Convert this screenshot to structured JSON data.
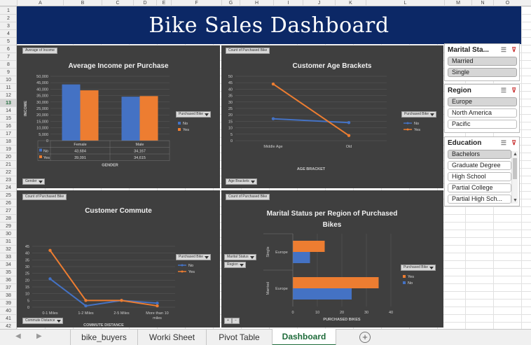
{
  "column_headers": [
    "A",
    "B",
    "C",
    "D",
    "E",
    "F",
    "G",
    "H",
    "I",
    "J",
    "K",
    "L",
    "M",
    "N",
    "O"
  ],
  "row_numbers": [
    "1",
    "2",
    "3",
    "4",
    "5",
    "6",
    "7",
    "8",
    "9",
    "10",
    "11",
    "12",
    "13",
    "14",
    "15",
    "16",
    "17",
    "18",
    "19",
    "20",
    "21",
    "22",
    "23",
    "24",
    "25",
    "26",
    "27",
    "28",
    "29",
    "30",
    "31",
    "32",
    "33",
    "34",
    "35",
    "36",
    "37",
    "38",
    "39",
    "40",
    "41",
    "42"
  ],
  "selected_row": "13",
  "title": "Bike Sales Dashboard",
  "colors": {
    "no": "#4472c4",
    "yes": "#ed7d31",
    "banner": "#0c2866",
    "panel": "#3f3f3f"
  },
  "panels": {
    "income": {
      "title": "Average Income per Purchase",
      "field_button": "Average of Income",
      "axis_button": "Gender",
      "legend_button": "Purchased Bike",
      "legend": [
        "No",
        "Yes"
      ],
      "table": {
        "headers": [
          "Female",
          "Male"
        ],
        "rows": [
          {
            "label": "No",
            "values": [
              "43,684",
              "34,167"
            ]
          },
          {
            "label": "Yes",
            "values": [
              "39,091",
              "34,615"
            ]
          }
        ]
      }
    },
    "age": {
      "title": "Customer Age Brackets",
      "field_button": "Count of Purchased Bike",
      "axis_button": "Age Brackets",
      "legend_button": "Purchased Bike",
      "legend": [
        "No",
        "Yes"
      ]
    },
    "commute": {
      "title": "Customer Commute",
      "field_button": "Count of Purchased Bike",
      "axis_button": "Commute Distance",
      "legend_button": "Purchased Bike",
      "legend": [
        "No",
        "Yes"
      ]
    },
    "marital": {
      "title_lines": [
        "Marital Status per Region of Purchased",
        "Bikes"
      ],
      "field_button": "Count of Purchased Bike",
      "axis_buttons": [
        "Marital Status",
        "Region"
      ],
      "legend_button": "Purchased Bike",
      "legend": [
        "Yes",
        "No"
      ],
      "collapse_buttons": [
        "+",
        "−"
      ]
    }
  },
  "chart_data": [
    {
      "type": "bar",
      "title": "Average Income per Purchase",
      "categories": [
        "Female",
        "Male"
      ],
      "xlabel": "GENDER",
      "ylabel": "INCOME",
      "ylim": [
        0,
        50000
      ],
      "yticks": [
        "0",
        "5,000",
        "10,000",
        "15,000",
        "20,000",
        "25,000",
        "30,000",
        "35,000",
        "40,000",
        "45,000",
        "50,000"
      ],
      "series": [
        {
          "name": "No",
          "values": [
            43684,
            34167
          ]
        },
        {
          "name": "Yes",
          "values": [
            39091,
            34615
          ]
        }
      ],
      "grid": true,
      "legend": "right"
    },
    {
      "type": "line",
      "title": "Customer Age Brackets",
      "categories": [
        "Middle Age",
        "Old"
      ],
      "xlabel": "AGE BRACKET",
      "ylim": [
        0,
        50
      ],
      "yticks": [
        "0",
        "5",
        "10",
        "15",
        "20",
        "25",
        "30",
        "35",
        "40",
        "45",
        "50"
      ],
      "series": [
        {
          "name": "No",
          "values": [
            17,
            14
          ]
        },
        {
          "name": "Yes",
          "values": [
            44,
            4
          ]
        }
      ],
      "grid": true,
      "legend": "right"
    },
    {
      "type": "line",
      "title": "Customer Commute",
      "categories": [
        "0-1 Miles",
        "1-2 Miles",
        "2-5 Miles",
        "More than 10 miles"
      ],
      "xlabel": "COMMUTE DISTANCE",
      "ylim": [
        0,
        45
      ],
      "yticks": [
        "0",
        "5",
        "10",
        "15",
        "20",
        "25",
        "30",
        "35",
        "40",
        "45"
      ],
      "series": [
        {
          "name": "No",
          "values": [
            21,
            1,
            5,
            3
          ]
        },
        {
          "name": "Yes",
          "values": [
            42,
            5,
            5,
            1
          ]
        }
      ],
      "grid": true,
      "legend": "right"
    },
    {
      "type": "bar",
      "orientation": "horizontal",
      "title": "Marital Status per Region of Purchased Bikes",
      "groups": [
        {
          "outer": "Single",
          "inner": "Europe"
        },
        {
          "outer": "Married",
          "inner": "Europe"
        }
      ],
      "xlabel": "PURCHASED BIKES",
      "xlim": [
        0,
        40
      ],
      "xticks": [
        "0",
        "10",
        "20",
        "30",
        "40"
      ],
      "series": [
        {
          "name": "Yes",
          "values": [
            13,
            35
          ]
        },
        {
          "name": "No",
          "values": [
            7,
            24
          ]
        }
      ],
      "grid": true,
      "legend": "right"
    }
  ],
  "slicers": [
    {
      "title": "Marital Sta...",
      "items": [
        {
          "label": "Married",
          "selected": true
        },
        {
          "label": "Single",
          "selected": true
        }
      ]
    },
    {
      "title": "Region",
      "items": [
        {
          "label": "Europe",
          "selected": true
        },
        {
          "label": "North America",
          "selected": false
        },
        {
          "label": "Pacific",
          "selected": false
        }
      ]
    },
    {
      "title": "Education",
      "items": [
        {
          "label": "Bachelors",
          "selected": true
        },
        {
          "label": "Graduate Degree",
          "selected": false
        },
        {
          "label": "High School",
          "selected": false
        },
        {
          "label": "Partial College",
          "selected": false
        },
        {
          "label": "Partial High Sch...",
          "selected": false
        }
      ]
    }
  ],
  "sheet_tabs": [
    {
      "label": "bike_buyers",
      "active": false
    },
    {
      "label": "Worki Sheet",
      "active": false
    },
    {
      "label": "Pivot Table",
      "active": false
    },
    {
      "label": "Dashboard",
      "active": true
    }
  ],
  "add_sheet": "+"
}
